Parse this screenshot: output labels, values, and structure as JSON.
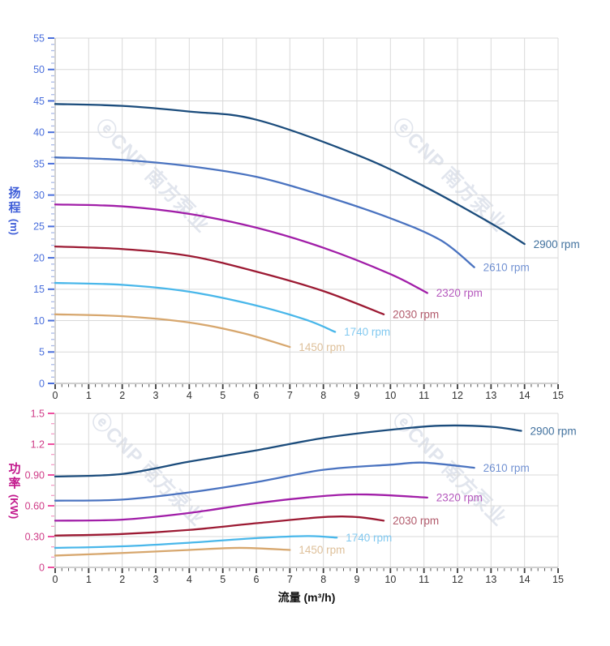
{
  "watermark": {
    "text": "ⓔCNP 南方泵业"
  },
  "chart_data": [
    {
      "id": "head-curve",
      "type": "line",
      "title": "",
      "xlabel": "",
      "ylabel": "扬程",
      "ylabel_unit": "(m)",
      "xlim": [
        0,
        15
      ],
      "ylim": [
        0,
        55
      ],
      "grid": true,
      "legend_position": "end-of-line-labels",
      "x_ticks": {
        "values": [
          0,
          1,
          2,
          3,
          4,
          5,
          6,
          7,
          8,
          9,
          10,
          11,
          12,
          13,
          14,
          15
        ],
        "labels": [
          "0",
          "1",
          "2",
          "3",
          "4",
          "5",
          "6",
          "7",
          "8",
          "9",
          "10",
          "11",
          "12",
          "13",
          "14",
          "15"
        ],
        "minor_step": 0.2
      },
      "y_ticks": {
        "values": [
          0,
          5,
          10,
          15,
          20,
          25,
          30,
          35,
          40,
          45,
          50,
          55
        ],
        "labels": [
          "0",
          "5",
          "10",
          "15",
          "20",
          "25",
          "30",
          "35",
          "40",
          "45",
          "50",
          "55"
        ],
        "minor_step": 1
      },
      "axis_style": {
        "y_label_color": "#4a6fdc",
        "y_tick_color": "#4a6fdc",
        "y_minor_tick_color": "#aabae8",
        "y_title_color": "#3f5ed8",
        "x_label_color": "#333333",
        "x_tick_color": "#3c3c3c",
        "grid_color": "#d9d9d9",
        "axis_line_color": "#b5b5b5"
      },
      "series": [
        {
          "name": "2900 rpm",
          "color": "#1b4c7c",
          "label_color": "#41719e",
          "points": [
            [
              0,
              44.5
            ],
            [
              2,
              44.2
            ],
            [
              4,
              43.3
            ],
            [
              6,
              42.0
            ],
            [
              9,
              36.4
            ],
            [
              11,
              31.4
            ],
            [
              13,
              25.5
            ],
            [
              14,
              22.2
            ]
          ]
        },
        {
          "name": "2610 rpm",
          "color": "#4a73c0",
          "label_color": "#7191d2",
          "points": [
            [
              0,
              36.0
            ],
            [
              2,
              35.6
            ],
            [
              4,
              34.6
            ],
            [
              6,
              32.9
            ],
            [
              8,
              29.9
            ],
            [
              10,
              26.3
            ],
            [
              11.5,
              22.8
            ],
            [
              12.5,
              18.5
            ]
          ]
        },
        {
          "name": "2320 rpm",
          "color": "#a11ea8",
          "label_color": "#b558bd",
          "points": [
            [
              0,
              28.5
            ],
            [
              2,
              28.2
            ],
            [
              4,
              27.0
            ],
            [
              6,
              24.8
            ],
            [
              8,
              21.6
            ],
            [
              10,
              17.4
            ],
            [
              11.1,
              14.4
            ]
          ]
        },
        {
          "name": "2030 rpm",
          "color": "#9c1a33",
          "label_color": "#b25b6c",
          "points": [
            [
              0,
              21.8
            ],
            [
              2,
              21.4
            ],
            [
              4,
              20.3
            ],
            [
              6,
              17.8
            ],
            [
              8,
              14.7
            ],
            [
              9.8,
              11.0
            ]
          ]
        },
        {
          "name": "1740 rpm",
          "color": "#49b7ea",
          "label_color": "#82c9f0",
          "points": [
            [
              0,
              16.0
            ],
            [
              2,
              15.7
            ],
            [
              4,
              14.6
            ],
            [
              6,
              12.4
            ],
            [
              7.5,
              10.1
            ],
            [
              8.35,
              8.2
            ]
          ]
        },
        {
          "name": "1450 rpm",
          "color": "#d7a76e",
          "label_color": "#dec09a",
          "points": [
            [
              0,
              11.0
            ],
            [
              2,
              10.7
            ],
            [
              4,
              9.7
            ],
            [
              5.6,
              8.0
            ],
            [
              7,
              5.8
            ]
          ]
        }
      ]
    },
    {
      "id": "power-curve",
      "type": "line",
      "title": "",
      "xlabel": "流量 (m³/h)",
      "ylabel": "功率",
      "ylabel_unit": "(KW)",
      "xlim": [
        0,
        15
      ],
      "ylim": [
        0,
        1.5
      ],
      "grid": true,
      "legend_position": "end-of-line-labels",
      "x_ticks": {
        "values": [
          0,
          1,
          2,
          3,
          4,
          5,
          6,
          7,
          8,
          9,
          10,
          11,
          12,
          13,
          14,
          15
        ],
        "labels": [
          "0",
          "1",
          "2",
          "3",
          "4",
          "5",
          "6",
          "7",
          "8",
          "9",
          "10",
          "11",
          "12",
          "13",
          "14",
          "15"
        ],
        "minor_step": 0.2
      },
      "y_ticks": {
        "values": [
          0,
          0.3,
          0.6,
          0.9,
          1.2,
          1.5
        ],
        "labels": [
          "0",
          "0.30",
          "0.60",
          "0.90",
          "1.2",
          "1.5"
        ],
        "minor_step": 0.1
      },
      "axis_style": {
        "y_label_color": "#cf3d88",
        "y_tick_color": "#ee4fa0",
        "y_minor_tick_color": "#f59ec7",
        "y_title_color": "#c2188c",
        "x_label_color": "#333333",
        "x_tick_color": "#3c3c3c",
        "grid_color": "#d9d9d9",
        "axis_line_color": "#b5b5b5"
      },
      "series": [
        {
          "name": "2900 rpm",
          "color": "#1b4c7c",
          "label_color": "#41719e",
          "points": [
            [
              0,
              0.885
            ],
            [
              2,
              0.91
            ],
            [
              4,
              1.03
            ],
            [
              6,
              1.14
            ],
            [
              8,
              1.26
            ],
            [
              10,
              1.34
            ],
            [
              11.5,
              1.38
            ],
            [
              13,
              1.37
            ],
            [
              13.9,
              1.33
            ]
          ]
        },
        {
          "name": "2610 rpm",
          "color": "#4a73c0",
          "label_color": "#7191d2",
          "points": [
            [
              0,
              0.65
            ],
            [
              2,
              0.66
            ],
            [
              4,
              0.73
            ],
            [
              6,
              0.83
            ],
            [
              8,
              0.95
            ],
            [
              10,
              1.0
            ],
            [
              11,
              1.02
            ],
            [
              12.5,
              0.97
            ]
          ]
        },
        {
          "name": "2320 rpm",
          "color": "#a11ea8",
          "label_color": "#b558bd",
          "points": [
            [
              0,
              0.455
            ],
            [
              2,
              0.465
            ],
            [
              4,
              0.53
            ],
            [
              6,
              0.625
            ],
            [
              8,
              0.695
            ],
            [
              9.3,
              0.71
            ],
            [
              11.1,
              0.68
            ]
          ]
        },
        {
          "name": "2030 rpm",
          "color": "#9c1a33",
          "label_color": "#b25b6c",
          "points": [
            [
              0,
              0.31
            ],
            [
              2,
              0.325
            ],
            [
              4,
              0.365
            ],
            [
              6,
              0.43
            ],
            [
              8,
              0.49
            ],
            [
              9,
              0.49
            ],
            [
              9.8,
              0.455
            ]
          ]
        },
        {
          "name": "1740 rpm",
          "color": "#49b7ea",
          "label_color": "#82c9f0",
          "points": [
            [
              0,
              0.19
            ],
            [
              2,
              0.205
            ],
            [
              4,
              0.24
            ],
            [
              6,
              0.285
            ],
            [
              7.5,
              0.305
            ],
            [
              8.4,
              0.29
            ]
          ]
        },
        {
          "name": "1450 rpm",
          "color": "#d7a76e",
          "label_color": "#dec09a",
          "points": [
            [
              0,
              0.115
            ],
            [
              2,
              0.14
            ],
            [
              4,
              0.17
            ],
            [
              5.5,
              0.19
            ],
            [
              7,
              0.17
            ]
          ]
        }
      ]
    }
  ]
}
